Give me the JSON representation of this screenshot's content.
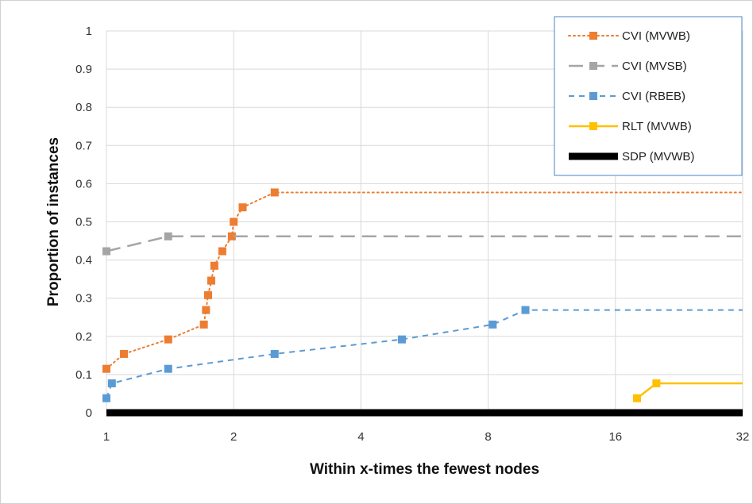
{
  "chart_data": {
    "type": "line",
    "title": "",
    "xlabel": "Within x-times the fewest nodes",
    "ylabel": "Proportion of instances",
    "x_scale": "log2",
    "xlim": [
      1,
      32
    ],
    "ylim": [
      0,
      1
    ],
    "x_ticks": [
      1,
      2,
      4,
      8,
      16,
      32
    ],
    "x_tick_labels": [
      "1",
      "2",
      "4",
      "8",
      "16",
      "32"
    ],
    "y_ticks": [
      0,
      0.1,
      0.2,
      0.3,
      0.4,
      0.5,
      0.6,
      0.7,
      0.8,
      0.9,
      1
    ],
    "y_tick_labels": [
      "0",
      "0.1",
      "0.2",
      "0.3",
      "0.4",
      "0.5",
      "0.6",
      "0.7",
      "0.8",
      "0.9",
      "1"
    ],
    "grid": true,
    "legend_position": "top-right",
    "series": [
      {
        "name": "CVI (MVWB)",
        "color": "#ED7D31",
        "dash": "dotted",
        "x": [
          1,
          1.1,
          1.4,
          1.7,
          1.72,
          1.74,
          1.77,
          1.8,
          1.88,
          1.98,
          2.0,
          2.1,
          2.5,
          32
        ],
        "y": [
          0.115,
          0.154,
          0.192,
          0.231,
          0.269,
          0.308,
          0.346,
          0.385,
          0.423,
          0.462,
          0.5,
          0.538,
          0.577,
          0.577
        ],
        "markers": [
          true,
          true,
          true,
          true,
          true,
          true,
          true,
          true,
          true,
          true,
          true,
          true,
          true,
          false
        ]
      },
      {
        "name": "CVI (MVSB)",
        "color": "#A5A5A5",
        "dash": "long-dash",
        "x": [
          1,
          1.4,
          32
        ],
        "y": [
          0.423,
          0.462,
          0.462
        ],
        "markers": [
          true,
          true,
          false
        ]
      },
      {
        "name": "CVI (RBEB)",
        "color": "#5B9BD5",
        "dash": "dashed",
        "x": [
          1,
          1.03,
          1.4,
          2.5,
          5,
          8.2,
          9.8,
          32
        ],
        "y": [
          0.038,
          0.077,
          0.115,
          0.154,
          0.192,
          0.231,
          0.269,
          0.269
        ],
        "markers": [
          true,
          true,
          true,
          true,
          true,
          true,
          true,
          false
        ]
      },
      {
        "name": "RLT (MVWB)",
        "color": "#FFC000",
        "dash": "solid",
        "x": [
          18,
          20,
          32
        ],
        "y": [
          0.038,
          0.077,
          0.077
        ],
        "markers": [
          true,
          true,
          false
        ]
      },
      {
        "name": "SDP (MVWB)",
        "color": "#000000",
        "dash": "solid-thick",
        "x": [
          1,
          32
        ],
        "y": [
          0,
          0
        ],
        "markers": [
          false,
          false
        ]
      }
    ]
  }
}
